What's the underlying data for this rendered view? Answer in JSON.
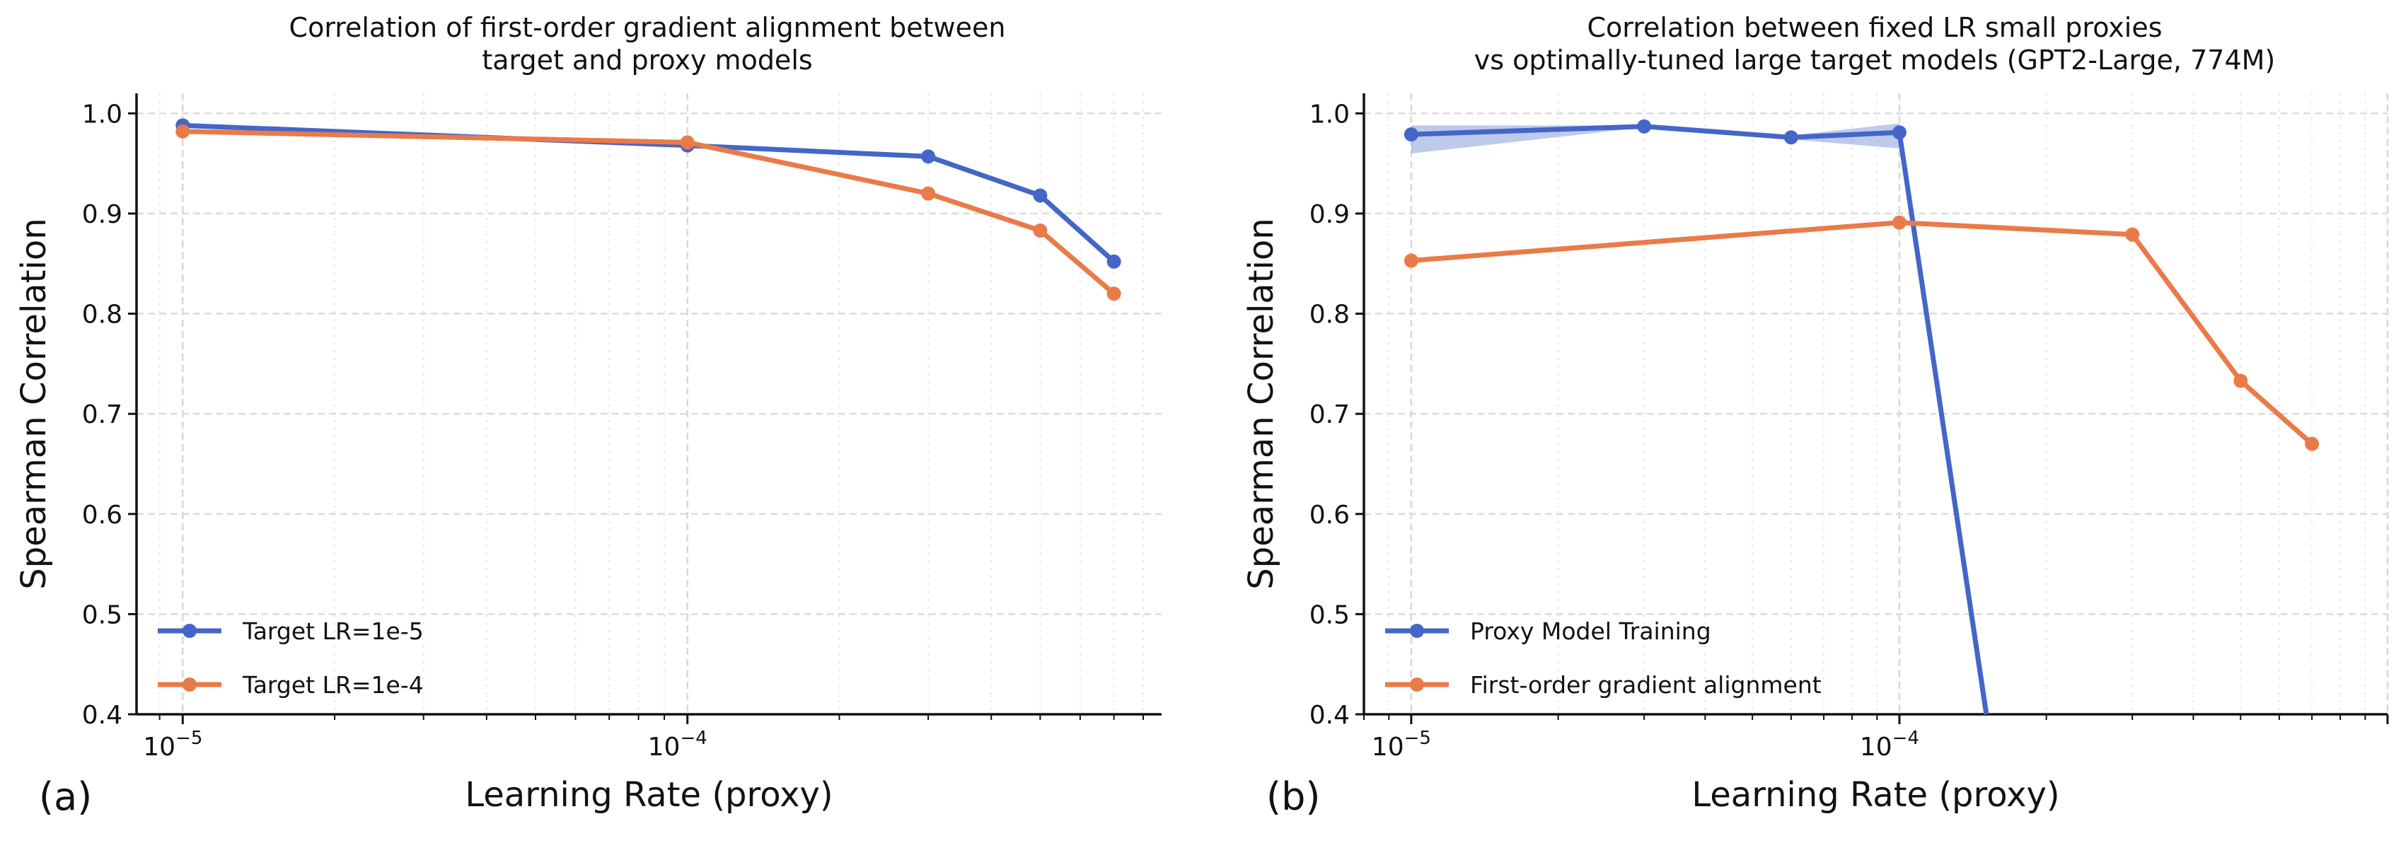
{
  "colors": {
    "blue": "#4466c8",
    "orange": "#e97b48",
    "band": "#4466c8"
  },
  "chart_data": [
    {
      "type": "line",
      "panel_label": "(a)",
      "title": [
        "Correlation of first-order gradient alignment between",
        "target and proxy models"
      ],
      "xlabel": "Learning Rate (proxy)",
      "ylabel": "Spearman Correlation",
      "xscale": "log",
      "xlim": [
        8.1e-06,
        0.00087
      ],
      "ylim": [
        0.4,
        1.02
      ],
      "xticks": [
        {
          "value": 1e-05,
          "base": "10",
          "exp": "−5"
        },
        {
          "value": 0.0001,
          "base": "10",
          "exp": "−4"
        }
      ],
      "yticks": [
        0.4,
        0.5,
        0.6,
        0.7,
        0.8,
        0.9,
        1.0
      ],
      "ytick_labels": [
        "0.4",
        "0.5",
        "0.6",
        "0.7",
        "0.8",
        "0.9",
        "1.0"
      ],
      "grid": true,
      "legend": "lower-left",
      "series": [
        {
          "name": "Target LR=1e-5",
          "color": "blue",
          "x": [
            1e-05,
            0.0001,
            0.0003,
            0.0005,
            0.0007
          ],
          "y": [
            0.988,
            0.968,
            0.957,
            0.918,
            0.852
          ]
        },
        {
          "name": "Target LR=1e-4",
          "color": "orange",
          "x": [
            1e-05,
            0.0001,
            0.0003,
            0.0005,
            0.0007
          ],
          "y": [
            0.982,
            0.971,
            0.92,
            0.883,
            0.82
          ]
        }
      ]
    },
    {
      "type": "line",
      "panel_label": "(b)",
      "title": [
        "Correlation between fixed LR small proxies",
        "vs optimally-tuned large target models (GPT2-Large, 774M)"
      ],
      "xlabel": "Learning Rate (proxy)",
      "ylabel": "Spearman Correlation",
      "xscale": "log",
      "xlim": [
        8e-06,
        0.001
      ],
      "ylim": [
        0.4,
        1.02
      ],
      "xticks": [
        {
          "value": 1e-05,
          "base": "10",
          "exp": "−5"
        },
        {
          "value": 0.0001,
          "base": "10",
          "exp": "−4"
        }
      ],
      "yticks": [
        0.4,
        0.5,
        0.6,
        0.7,
        0.8,
        0.9,
        1.0
      ],
      "ytick_labels": [
        "0.4",
        "0.5",
        "0.6",
        "0.7",
        "0.8",
        "0.9",
        "1.0"
      ],
      "grid": true,
      "legend": "lower-left",
      "series": [
        {
          "name": "Proxy Model Training",
          "color": "blue",
          "x": [
            1e-05,
            3e-05,
            6e-05,
            0.0001,
            0.0002
          ],
          "y": [
            0.979,
            0.987,
            0.976,
            0.981,
            0.0
          ],
          "band_lower": [
            0.96,
            0.986,
            0.974,
            0.965,
            -0.02
          ],
          "band_upper": [
            0.988,
            0.988,
            0.978,
            0.99,
            0.02
          ]
        },
        {
          "name": "First-order gradient alignment",
          "color": "orange",
          "x": [
            1e-05,
            0.0001,
            0.0003,
            0.0005,
            0.0007
          ],
          "y": [
            0.853,
            0.891,
            0.879,
            0.733,
            0.67
          ]
        }
      ]
    }
  ]
}
